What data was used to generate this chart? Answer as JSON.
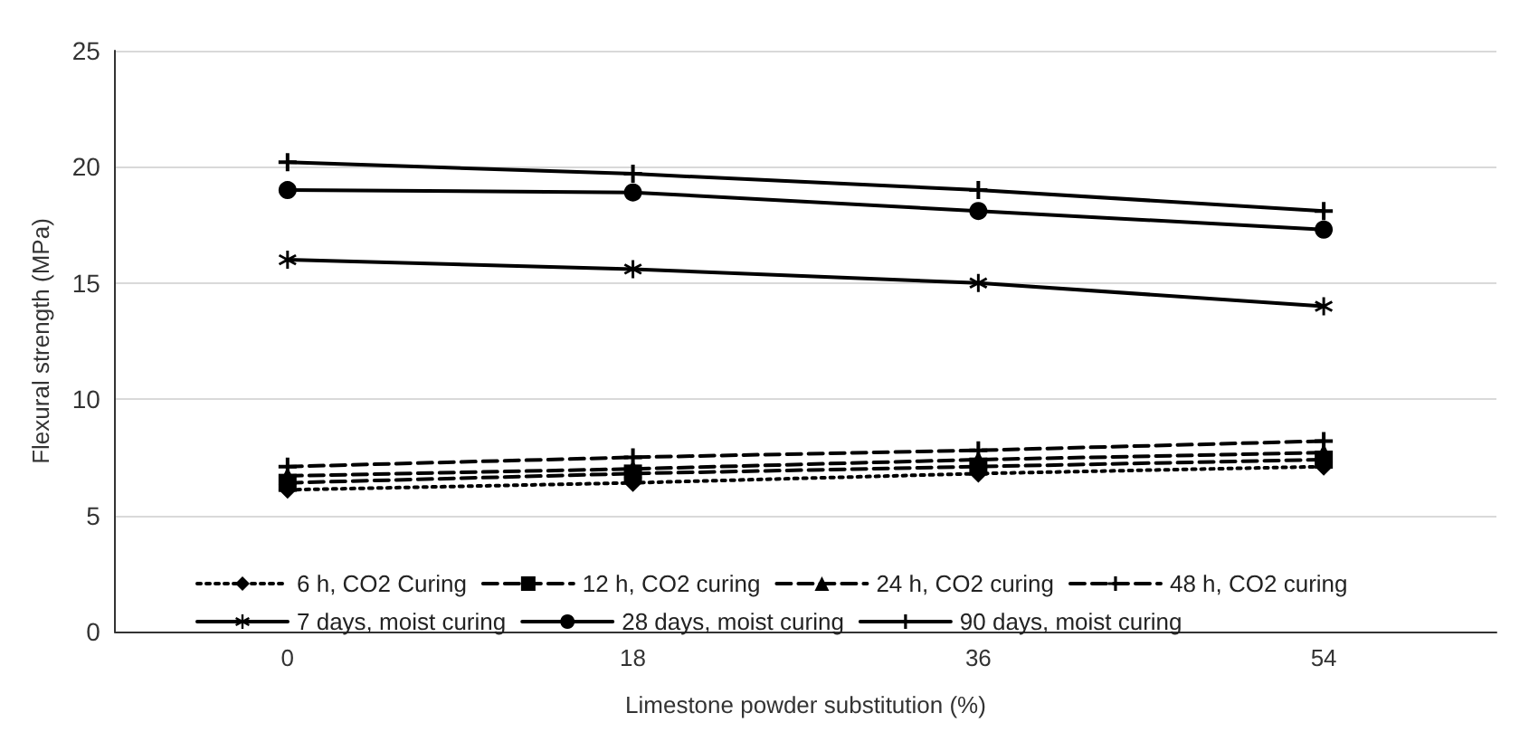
{
  "chart_data": {
    "type": "line",
    "xlabel": "Limestone powder substitution (%)",
    "ylabel": "Flexural strength (MPa)",
    "categories": [
      "0",
      "18",
      "36",
      "54"
    ],
    "ylim": [
      0,
      25
    ],
    "yticks": [
      0,
      5,
      10,
      15,
      20,
      25
    ],
    "grid": "y",
    "legend": "bottom",
    "series": [
      {
        "name": "6 h, CO2 Curing",
        "color": "#000000",
        "marker": "diamond",
        "line_style": "dotted",
        "values": [
          6.1,
          6.4,
          6.8,
          7.1
        ]
      },
      {
        "name": "12 h, CO2 curing",
        "color": "#000000",
        "marker": "square",
        "line_style": "dashed",
        "values": [
          6.4,
          6.8,
          7.1,
          7.4
        ]
      },
      {
        "name": "24 h, CO2 curing",
        "color": "#000000",
        "marker": "triangle",
        "line_style": "dashed",
        "values": [
          6.7,
          7.0,
          7.4,
          7.7
        ]
      },
      {
        "name": "48 h, CO2 curing",
        "color": "#000000",
        "marker": "cross",
        "line_style": "dashed",
        "values": [
          7.1,
          7.5,
          7.8,
          8.2
        ]
      },
      {
        "name": "7 days, moist curing",
        "color": "#000000",
        "marker": "star",
        "line_style": "solid",
        "values": [
          16.0,
          15.6,
          15.0,
          14.0
        ]
      },
      {
        "name": "28 days, moist curing",
        "color": "#000000",
        "marker": "circle",
        "line_style": "solid",
        "values": [
          19.0,
          18.9,
          18.1,
          17.3
        ]
      },
      {
        "name": "90 days, moist curing",
        "color": "#000000",
        "marker": "cross",
        "line_style": "solid",
        "values": [
          20.2,
          19.7,
          19.0,
          18.1
        ]
      }
    ]
  }
}
